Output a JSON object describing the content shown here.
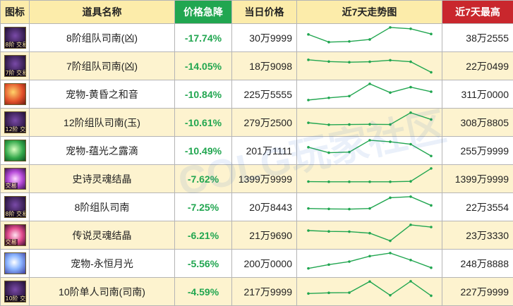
{
  "header": {
    "icon": "图标",
    "name": "道具名称",
    "change": "价格急降",
    "price": "当日价格",
    "trend": "近7天走势图",
    "max": "近7天最高"
  },
  "colors": {
    "header_bg": "#fcecaa",
    "change_header_bg": "#21a650",
    "max_header_bg": "#c9272d",
    "row_alt_bg": "#fdf3cf",
    "trend_line": "#21a650",
    "change_text": "#21a650"
  },
  "rows": [
    {
      "icon": "dark-purple-box-icon",
      "badge": "8阶 交易",
      "name": "8阶组队司南(凶)",
      "change": "-17.74%",
      "price": "30万9999",
      "max": "38万2555",
      "trend": [
        6.5,
        3.0,
        3.3,
        4.2,
        9.7,
        9.1,
        6.7
      ]
    },
    {
      "icon": "dark-purple-box-icon",
      "badge": "7阶 交易",
      "name": "7阶组队司南(凶)",
      "change": "-14.05%",
      "price": "18万9098",
      "max": "22万0499",
      "trend": [
        7.8,
        7.0,
        6.7,
        6.9,
        7.6,
        6.9,
        2.1
      ]
    },
    {
      "icon": "orange-flame-icon",
      "badge": "",
      "name": "宠物-黄昏之和音",
      "change": "-10.84%",
      "price": "225万5555",
      "max": "311万0000",
      "trend": [
        2.3,
        3.3,
        4.1,
        9.7,
        5.7,
        8.2,
        6.1
      ]
    },
    {
      "icon": "dark-purple-box-icon",
      "badge": "12阶 交易",
      "name": "12阶组队司南(玉)",
      "change": "-10.61%",
      "price": "279万2500",
      "max": "308万8805",
      "trend": [
        4.8,
        3.9,
        4.0,
        4.1,
        4.0,
        9.4,
        6.3
      ]
    },
    {
      "icon": "green-leaf-icon",
      "badge": "",
      "name": "宠物-蕴光之露滴",
      "change": "-10.49%",
      "price": "201万1111",
      "max": "255万9999",
      "trend": [
        6.5,
        4.0,
        4.3,
        9.7,
        9.0,
        7.9,
        2.5
      ]
    },
    {
      "icon": "purple-crystal-icon",
      "badge": "交易",
      "name": "史诗灵魂结晶",
      "change": "-7.62%",
      "price": "1399万9999",
      "max": "1399万9999",
      "trend": [
        3.7,
        3.6,
        3.6,
        3.6,
        3.6,
        3.8,
        9.7
      ]
    },
    {
      "icon": "dark-purple-box-icon",
      "badge": "8阶 交易",
      "name": "8阶组队司南",
      "change": "-7.25%",
      "price": "20万8443",
      "max": "22万3554",
      "trend": [
        4.3,
        4.1,
        4.0,
        4.3,
        9.2,
        9.7,
        5.7
      ]
    },
    {
      "icon": "pink-crystal-icon",
      "badge": "交易",
      "name": "传说灵魂结晶",
      "change": "-6.21%",
      "price": "21万9690",
      "max": "23万3330",
      "trend": [
        7.1,
        6.7,
        6.6,
        5.9,
        2.4,
        9.7,
        8.7
      ]
    },
    {
      "icon": "blue-moon-icon",
      "badge": "",
      "name": "宠物-永恒月光",
      "change": "-5.56%",
      "price": "200万0000",
      "max": "248万8888",
      "trend": [
        2.7,
        4.4,
        5.8,
        8.3,
        9.7,
        6.5,
        3.0
      ]
    },
    {
      "icon": "dark-purple-box-icon",
      "badge": "10阶 交易",
      "name": "10阶单人司南(司南)",
      "change": "-4.59%",
      "price": "217万9999",
      "max": "227万9999",
      "trend": [
        4.1,
        4.4,
        4.5,
        9.6,
        3.3,
        9.7,
        3.1
      ]
    }
  ],
  "watermark": "COLG玩家社区"
}
